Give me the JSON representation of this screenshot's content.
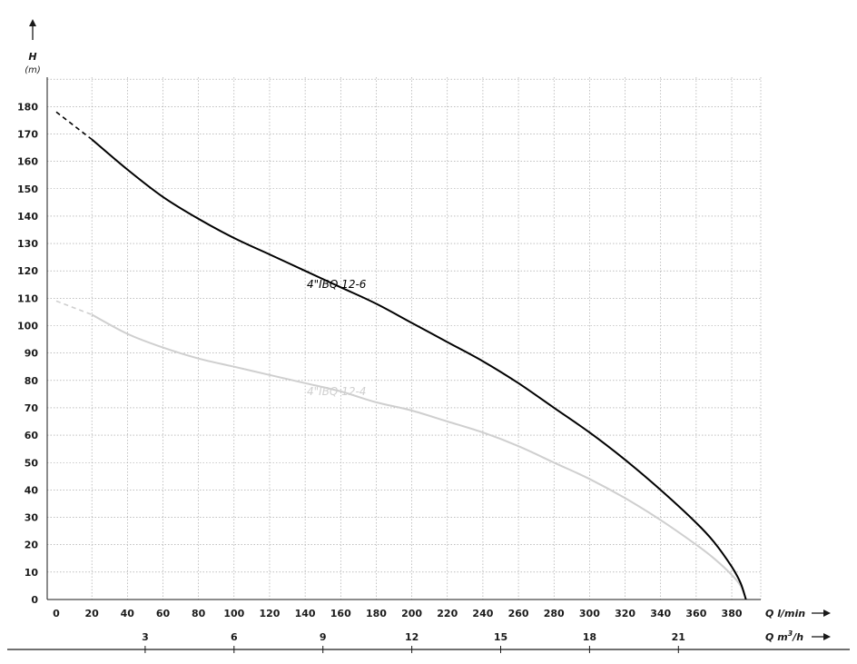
{
  "chart_data": {
    "type": "line",
    "y_axis": {
      "title": "H",
      "unit": "(m)",
      "ticks": [
        "0",
        "10",
        "20",
        "30",
        "40",
        "50",
        "60",
        "70",
        "80",
        "90",
        "100",
        "110",
        "120",
        "130",
        "140",
        "150",
        "160",
        "170",
        "180"
      ],
      "ylim": [
        0,
        190
      ]
    },
    "x_axis_lmin": {
      "title": "Q",
      "unit": "l/min",
      "ticks": [
        "0",
        "20",
        "40",
        "60",
        "80",
        "100",
        "120",
        "140",
        "160",
        "180",
        "200",
        "220",
        "240",
        "260",
        "280",
        "300",
        "320",
        "340",
        "360",
        "380"
      ],
      "xlim": [
        0,
        395
      ]
    },
    "x_axis_m3h": {
      "title": "Q",
      "unit": "m",
      "unit_sup": "3",
      "unit_suffix": "/h",
      "ticks": [
        "3",
        "6",
        "9",
        "12",
        "15",
        "18",
        "21"
      ]
    },
    "grid": true,
    "series": [
      {
        "name": "4\"IBQ 12-6",
        "color": "#000000",
        "dashed_segment": {
          "x": [
            0,
            20
          ],
          "y": [
            178,
            168
          ]
        },
        "x": [
          20,
          40,
          60,
          80,
          100,
          120,
          140,
          160,
          180,
          200,
          220,
          240,
          260,
          280,
          300,
          320,
          340,
          360,
          370,
          380,
          385,
          388
        ],
        "y": [
          168,
          157,
          147,
          139,
          132,
          126,
          120,
          114,
          108,
          101,
          94,
          87,
          79,
          70,
          61,
          51,
          40,
          28,
          21,
          12,
          6,
          0
        ]
      },
      {
        "name": "4\"IBQ 12-4",
        "color": "#cfcfcf",
        "dashed_segment": {
          "x": [
            0,
            20
          ],
          "y": [
            109,
            104
          ]
        },
        "x": [
          20,
          40,
          60,
          80,
          100,
          120,
          140,
          160,
          180,
          200,
          220,
          240,
          260,
          280,
          300,
          320,
          340,
          360,
          370,
          380,
          385,
          388
        ],
        "y": [
          104,
          97,
          92,
          88,
          85,
          82,
          79,
          76,
          72,
          69,
          65,
          61,
          56,
          50,
          44,
          37,
          29,
          20,
          15,
          9,
          5,
          0
        ]
      }
    ]
  }
}
